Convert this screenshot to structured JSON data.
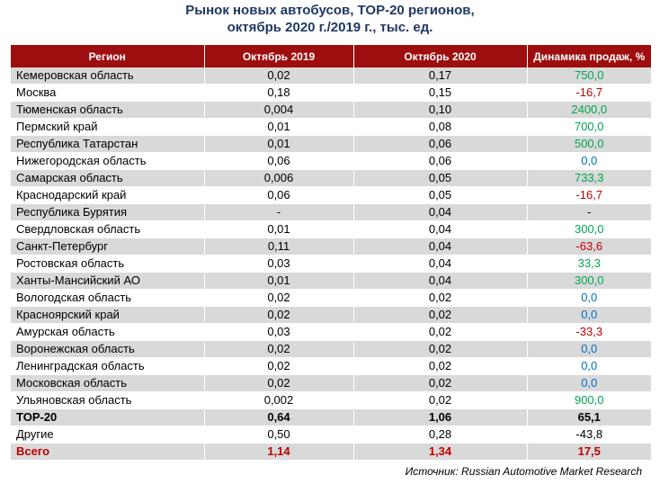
{
  "title_line1": "Рынок новых автобусов, TOP-20 регионов,",
  "title_line2": "октябрь 2020 г./2019 г., тыс. ед.",
  "source": "Источник: Russian Automotive Market Research",
  "colors": {
    "header_bg": "#9E0E0E",
    "positive": "#00A651",
    "negative": "#C00000",
    "zero": "#0070C0",
    "row_shade": "#D9D9D9"
  },
  "chart_data": {
    "type": "table",
    "columns": [
      "Регион",
      "Октябрь 2019",
      "Октябрь 2020",
      "Динамика продаж, %"
    ],
    "rows": [
      {
        "region": "Кемеровская область",
        "oct2019": "0,02",
        "oct2020": "0,17",
        "dynamics": "750,0",
        "sign": "pos"
      },
      {
        "region": "Москва",
        "oct2019": "0,18",
        "oct2020": "0,15",
        "dynamics": "-16,7",
        "sign": "neg"
      },
      {
        "region": "Тюменская область",
        "oct2019": "0,004",
        "oct2020": "0,10",
        "dynamics": "2400,0",
        "sign": "pos"
      },
      {
        "region": "Пермский край",
        "oct2019": "0,01",
        "oct2020": "0,08",
        "dynamics": "700,0",
        "sign": "pos"
      },
      {
        "region": "Республика Татарстан",
        "oct2019": "0,01",
        "oct2020": "0,06",
        "dynamics": "500,0",
        "sign": "pos"
      },
      {
        "region": "Нижегородская область",
        "oct2019": "0,06",
        "oct2020": "0,06",
        "dynamics": "0,0",
        "sign": "zero"
      },
      {
        "region": "Самарская область",
        "oct2019": "0,006",
        "oct2020": "0,05",
        "dynamics": "733,3",
        "sign": "pos"
      },
      {
        "region": "Краснодарский край",
        "oct2019": "0,06",
        "oct2020": "0,05",
        "dynamics": "-16,7",
        "sign": "neg"
      },
      {
        "region": "Республика Бурятия",
        "oct2019": "-",
        "oct2020": "0,04",
        "dynamics": "-",
        "sign": "none"
      },
      {
        "region": "Свердловская область",
        "oct2019": "0,01",
        "oct2020": "0,04",
        "dynamics": "300,0",
        "sign": "pos"
      },
      {
        "region": "Санкт-Петербург",
        "oct2019": "0,11",
        "oct2020": "0,04",
        "dynamics": "-63,6",
        "sign": "neg"
      },
      {
        "region": "Ростовская область",
        "oct2019": "0,03",
        "oct2020": "0,04",
        "dynamics": "33,3",
        "sign": "pos"
      },
      {
        "region": "Ханты-Мансийский АО",
        "oct2019": "0,01",
        "oct2020": "0,04",
        "dynamics": "300,0",
        "sign": "pos"
      },
      {
        "region": "Вологодская область",
        "oct2019": "0,02",
        "oct2020": "0,02",
        "dynamics": "0,0",
        "sign": "zero"
      },
      {
        "region": "Красноярский край",
        "oct2019": "0,02",
        "oct2020": "0,02",
        "dynamics": "0,0",
        "sign": "zero"
      },
      {
        "region": "Амурская область",
        "oct2019": "0,03",
        "oct2020": "0,02",
        "dynamics": "-33,3",
        "sign": "neg"
      },
      {
        "region": "Воронежская область",
        "oct2019": "0,02",
        "oct2020": "0,02",
        "dynamics": "0,0",
        "sign": "zero"
      },
      {
        "region": "Ленинградская область",
        "oct2019": "0,02",
        "oct2020": "0,02",
        "dynamics": "0,0",
        "sign": "zero"
      },
      {
        "region": "Московская область",
        "oct2019": "0,02",
        "oct2020": "0,02",
        "dynamics": "0,0",
        "sign": "zero"
      },
      {
        "region": "Ульяновская область",
        "oct2019": "0,002",
        "oct2020": "0,02",
        "dynamics": "900,0",
        "sign": "pos"
      }
    ],
    "summary": [
      {
        "region": "TOP-20",
        "oct2019": "0,64",
        "oct2020": "1,06",
        "dynamics": "65,1",
        "style": "bold"
      },
      {
        "region": "Другие",
        "oct2019": "0,50",
        "oct2020": "0,28",
        "dynamics": "-43,8",
        "style": "plain"
      },
      {
        "region": "Всего",
        "oct2019": "1,14",
        "oct2020": "1,34",
        "dynamics": "17,5",
        "style": "total"
      }
    ]
  }
}
